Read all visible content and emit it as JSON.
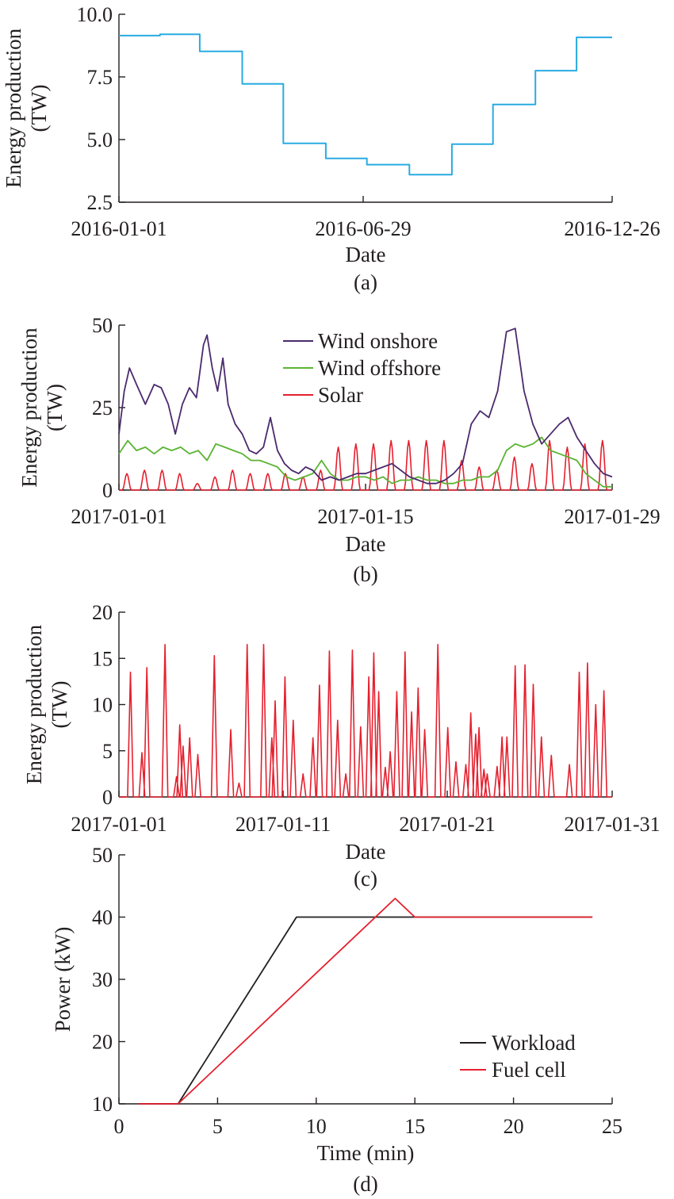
{
  "chart_data": [
    {
      "id": "a",
      "type": "line",
      "step": true,
      "caption": "(a)",
      "xlabel": "Date",
      "ylabel_lines": [
        "Energy production",
        "(TW)"
      ],
      "x_tick_labels": [
        "2016-01-01",
        "2016-06-29",
        "2016-12-26"
      ],
      "y_tick_labels": [
        "2.5",
        "5.0",
        "7.5",
        "10.0"
      ],
      "xlim": [
        "2016-01-01",
        "2016-12-26"
      ],
      "ylim": [
        2.5,
        10.0
      ],
      "series": [
        {
          "color": "#29abe2",
          "x": [
            "2016-01-01",
            "2016-01-31",
            "2016-02-29",
            "2016-03-31",
            "2016-04-30",
            "2016-05-31",
            "2016-06-30",
            "2016-07-31",
            "2016-08-31",
            "2016-09-30",
            "2016-10-31",
            "2016-11-30",
            "2016-12-26"
          ],
          "values": [
            9.15,
            9.2,
            8.52,
            7.22,
            4.85,
            4.25,
            4.0,
            3.6,
            4.82,
            6.4,
            7.75,
            9.08,
            9.08
          ]
        }
      ]
    },
    {
      "id": "b",
      "type": "line",
      "caption": "(b)",
      "xlabel": "Date",
      "ylabel_lines": [
        "Energy production",
        "(TW)"
      ],
      "x_tick_labels": [
        "2017-01-01",
        "2017-01-15",
        "2017-01-29"
      ],
      "y_tick_labels": [
        "0",
        "25",
        "50"
      ],
      "xlim": [
        "2017-01-01",
        "2017-01-29"
      ],
      "ylim": [
        0,
        50
      ],
      "legend_position": "top-center",
      "series": [
        {
          "name": "Wind onshore",
          "color": "#4b2a6d",
          "x": [
            0,
            0.3,
            0.6,
            1.0,
            1.5,
            2.0,
            2.4,
            2.8,
            3.2,
            3.6,
            4.0,
            4.4,
            4.8,
            5.0,
            5.3,
            5.6,
            5.9,
            6.2,
            6.6,
            7.0,
            7.4,
            7.8,
            8.2,
            8.6,
            9.0,
            9.4,
            9.8,
            10.2,
            10.6,
            11.0,
            11.5,
            12.0,
            12.5,
            13.0,
            13.5,
            14.0,
            14.5,
            15.0,
            15.5,
            16.0,
            16.5,
            17.0,
            17.5,
            18.0,
            18.5,
            19.0,
            19.5,
            20.0,
            20.5,
            21.0,
            21.5,
            22.0,
            22.5,
            23.0,
            23.5,
            24.0,
            24.5,
            25.0,
            25.5,
            26.0,
            26.5,
            27.0,
            27.5,
            28.0
          ],
          "values": [
            17,
            30,
            37,
            32,
            26,
            32,
            31,
            26,
            17,
            26,
            31,
            28,
            44,
            47,
            37,
            30,
            40,
            26,
            20,
            17,
            12,
            11,
            13,
            22,
            12,
            8,
            6,
            5,
            7,
            6,
            3,
            4,
            3,
            4,
            5,
            5,
            6,
            7,
            8,
            6,
            4,
            3,
            2,
            2,
            3,
            5,
            8,
            20,
            24,
            22,
            30,
            48,
            49,
            30,
            20,
            14,
            17,
            20,
            22,
            16,
            12,
            8,
            5,
            4
          ],
          "note": "x = days since 2017-01-01 (values estimated)"
        },
        {
          "name": "Wind offshore",
          "color": "#5ab432",
          "x": [
            0,
            0.5,
            1.0,
            1.5,
            2.0,
            2.5,
            3.0,
            3.5,
            4.0,
            4.5,
            5.0,
            5.5,
            6.0,
            6.5,
            7.0,
            7.5,
            8.0,
            8.5,
            9.0,
            9.5,
            10.0,
            10.5,
            11.0,
            11.5,
            12.0,
            12.5,
            13.0,
            13.5,
            14.0,
            14.5,
            15.0,
            15.5,
            16.0,
            16.5,
            17.0,
            17.5,
            18.0,
            18.5,
            19.0,
            19.5,
            20.0,
            20.5,
            21.0,
            21.5,
            22.0,
            22.5,
            23.0,
            23.5,
            24.0,
            24.5,
            25.0,
            25.5,
            26.0,
            26.5,
            27.0,
            27.5,
            28.0
          ],
          "values": [
            11,
            15,
            12,
            13,
            11,
            13,
            12,
            13,
            11,
            12,
            9,
            14,
            13,
            12,
            11,
            9,
            9,
            8,
            7,
            4,
            3,
            4,
            5,
            9,
            5,
            3,
            3,
            4,
            4,
            3,
            4,
            2,
            3,
            3,
            4,
            3,
            3,
            2,
            2,
            3,
            3,
            4,
            4,
            6,
            12,
            14,
            13,
            14,
            16,
            12,
            11,
            10,
            9,
            5,
            3,
            1,
            1
          ]
        },
        {
          "name": "Solar",
          "color": "#e5202e",
          "peaks_x": [
            0.45,
            1.45,
            2.45,
            3.45,
            4.45,
            5.45,
            6.45,
            7.45,
            8.45,
            9.45,
            10.45,
            11.45,
            12.45,
            13.45,
            14.45,
            15.45,
            16.45,
            17.45,
            18.45,
            19.45,
            20.45,
            21.45,
            22.45,
            23.45,
            24.45,
            25.45,
            26.45,
            27.45
          ],
          "peak_values": [
            5,
            6,
            6,
            5,
            2,
            4,
            6,
            5,
            5,
            5,
            4,
            6,
            13,
            14,
            14,
            15,
            15,
            15,
            15,
            9,
            7,
            6,
            10,
            8,
            15,
            13,
            14,
            15
          ],
          "peak_width_days": 0.5
        }
      ]
    },
    {
      "id": "c",
      "type": "line",
      "caption": "(c)",
      "xlabel": "Date",
      "ylabel_lines": [
        "Energy production",
        "(TW)"
      ],
      "x_tick_labels": [
        "2017-01-01",
        "2017-01-11",
        "2017-01-21",
        "2017-01-31"
      ],
      "y_tick_labels": [
        "0",
        "5",
        "10",
        "15",
        "20"
      ],
      "xlim": [
        "2017-01-01",
        "2017-01-31"
      ],
      "ylim": [
        0,
        20
      ],
      "series": [
        {
          "color": "#e5202e",
          "peaks_x": [
            0.7,
            1.4,
            1.7,
            2.8,
            3.5,
            3.7,
            3.9,
            4.3,
            4.8,
            5.8,
            6.8,
            7.3,
            7.8,
            8.8,
            9.3,
            9.5,
            10.1,
            10.6,
            11.2,
            11.8,
            12.2,
            12.8,
            13.3,
            13.8,
            14.2,
            14.7,
            15.2,
            15.5,
            15.8,
            16.2,
            16.5,
            16.9,
            17.4,
            17.8,
            18.2,
            18.6,
            19.4,
            20.0,
            20.5,
            21.1,
            21.4,
            21.7,
            21.9,
            22.2,
            22.4,
            23.0,
            23.3,
            23.6,
            24.1,
            24.7,
            25.2,
            25.7,
            26.3,
            27.4,
            28.0,
            28.5,
            29.0,
            29.5
          ],
          "values": [
            13.5,
            4.8,
            14,
            16.5,
            2.2,
            7.8,
            5.5,
            6.4,
            4.6,
            15.3,
            7.3,
            1.5,
            16.5,
            16.5,
            6.4,
            10.4,
            13,
            8.3,
            2.5,
            6.4,
            12.1,
            15.8,
            8.3,
            2.5,
            15.9,
            7.6,
            13,
            15.6,
            11.4,
            3.2,
            4.9,
            11.4,
            15.7,
            9.2,
            11.8,
            7.3,
            16.5,
            7.5,
            3.8,
            3.5,
            9.1,
            6.8,
            7.5,
            3,
            2.5,
            3.3,
            6.5,
            6.5,
            14.2,
            14.3,
            12.2,
            6.5,
            4.5,
            3.5,
            13.5,
            14.5,
            10,
            11.5
          ],
          "note": "x = days since 2017-01-01 (values estimated)",
          "peak_width_days": 0.35
        }
      ]
    },
    {
      "id": "d",
      "type": "line",
      "caption": "(d)",
      "xlabel": "Time (min)",
      "ylabel": "Power (kW)",
      "x_tick_labels": [
        "0",
        "5",
        "10",
        "15",
        "20",
        "25"
      ],
      "y_tick_labels": [
        "10",
        "20",
        "30",
        "40",
        "50"
      ],
      "xlim": [
        0,
        25
      ],
      "ylim": [
        10,
        50
      ],
      "legend_position": "bottom-right",
      "series": [
        {
          "name": "Workload",
          "color": "#231f20",
          "x": [
            1,
            3,
            9,
            15,
            24
          ],
          "values": [
            10,
            10,
            40,
            40,
            40
          ]
        },
        {
          "name": "Fuel cell",
          "color": "#e5202e",
          "x": [
            1,
            3,
            14,
            15,
            24
          ],
          "values": [
            10,
            10,
            43,
            40,
            40
          ]
        }
      ]
    }
  ]
}
